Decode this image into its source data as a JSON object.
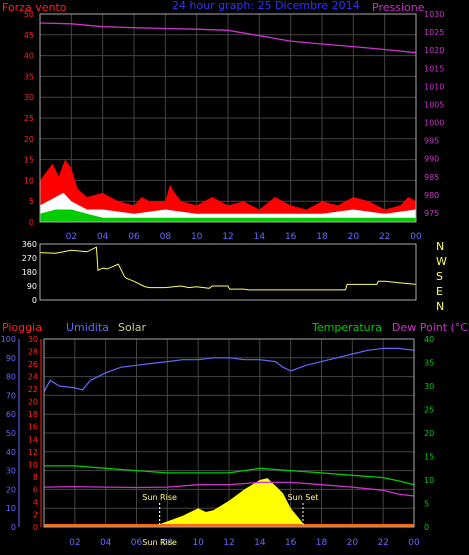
{
  "chart_data": [
    {
      "type": "area",
      "title": "24 hour graph",
      "y_left_label": "Forza vento",
      "y_right_label": "Pressione",
      "grid": true,
      "x_ticks": [
        "02",
        "04",
        "06",
        "08",
        "10",
        "12",
        "14",
        "16",
        "18",
        "20",
        "22",
        "00"
      ],
      "y_left_ticks": [
        "0",
        "5",
        "10",
        "15",
        "20",
        "25",
        "30",
        "35",
        "40",
        "45",
        "50"
      ],
      "y_right_ticks": [
        "975",
        "980",
        "985",
        "990",
        "995",
        "1000",
        "1005",
        "1010",
        "1015",
        "1020",
        "1025",
        "1030"
      ],
      "ylim_left": [
        0,
        50
      ],
      "ylim_right": [
        972.5,
        1030
      ],
      "colors": {
        "gust": "#ff0000",
        "wind": "#ffffff",
        "avg": "#00cc00",
        "pressure": "#cc33cc",
        "axis": "#ff2020",
        "axis_right": "#cc33cc",
        "title": "#3333ff",
        "frame": "#aaaaaa",
        "grid": "#444444"
      },
      "series": [
        {
          "role": "pressure",
          "x": [
            0,
            2,
            4,
            6,
            8,
            10,
            12,
            14,
            16,
            18,
            20,
            22,
            24
          ],
          "values": [
            1027.5,
            1027.3,
            1026.5,
            1026.2,
            1026.0,
            1025.8,
            1025.5,
            1024.0,
            1022.5,
            1021.7,
            1021.0,
            1020.2,
            1019.3
          ]
        },
        {
          "role": "gust",
          "x": [
            0,
            0.8,
            1.2,
            1.6,
            2.0,
            2.4,
            3.0,
            4.0,
            5.0,
            6.0,
            6.5,
            7.0,
            8.0,
            8.3,
            8.6,
            9.0,
            10.0,
            11.0,
            12.0,
            13.0,
            14.0,
            15.0,
            16.0,
            17.0,
            18.0,
            19.0,
            20.0,
            21.0,
            22.0,
            23.0,
            23.5,
            24.0
          ],
          "values": [
            10,
            14,
            11,
            15,
            13,
            8,
            6,
            7,
            5,
            4,
            6,
            5,
            5,
            9,
            7,
            5,
            4,
            6,
            4,
            5,
            3,
            6,
            4,
            3,
            5,
            4,
            6,
            5,
            3,
            4,
            6,
            5
          ]
        },
        {
          "role": "wind",
          "x": [
            0,
            1,
            1.5,
            2,
            3,
            4,
            6,
            8,
            10,
            12,
            14,
            16,
            18,
            20,
            22,
            24
          ],
          "values": [
            4,
            6,
            7,
            5,
            3,
            3,
            2,
            3,
            2,
            2,
            2,
            2,
            2,
            3,
            2,
            3
          ]
        },
        {
          "role": "avg",
          "x": [
            0,
            1,
            2,
            3,
            4,
            6,
            8,
            10,
            12,
            14,
            16,
            18,
            20,
            22,
            24
          ],
          "values": [
            2,
            3,
            3,
            2,
            1,
            1,
            1,
            1,
            1,
            1,
            1,
            1,
            1,
            1,
            1
          ]
        }
      ]
    },
    {
      "type": "line",
      "compass": [
        "N",
        "W",
        "S",
        "E",
        "N"
      ],
      "y_ticks": [
        "360",
        "270",
        "180",
        "90",
        "0"
      ],
      "ylim": [
        0,
        360
      ],
      "color": "#ffff66",
      "series": [
        {
          "role": "direction",
          "x": [
            0,
            1.0,
            2.0,
            3.0,
            3.6,
            3.7,
            4.0,
            4.3,
            5.0,
            5.4,
            5.5,
            6.0,
            6.6,
            6.7,
            7.0,
            8.0,
            9.0,
            9.5,
            10.0,
            10.8,
            11.0,
            12.0,
            12.1,
            13.0,
            13.3,
            14.0,
            16.0,
            18.0,
            19.5,
            19.6,
            20.0,
            21.0,
            21.5,
            21.6,
            22.0,
            23.0,
            24.0
          ],
          "values": [
            305,
            300,
            320,
            310,
            340,
            190,
            205,
            200,
            230,
            150,
            140,
            120,
            90,
            85,
            80,
            80,
            90,
            80,
            85,
            75,
            90,
            90,
            70,
            70,
            65,
            65,
            65,
            65,
            65,
            100,
            100,
            100,
            100,
            120,
            120,
            110,
            100
          ]
        }
      ]
    },
    {
      "type": "line",
      "legend": [
        "Pioggia",
        "Umidita",
        "Solar",
        "Temperatura",
        "Dew Point (°C)"
      ],
      "grid": true,
      "x_ticks": [
        "02",
        "04",
        "06",
        "08",
        "10",
        "12",
        "14",
        "16",
        "18",
        "20",
        "22",
        "00"
      ],
      "rain_ticks": [
        "0",
        "2",
        "4",
        "6",
        "8",
        "10",
        "12",
        "14",
        "16",
        "18",
        "20",
        "22",
        "24",
        "26",
        "28",
        "30"
      ],
      "humidity_ticks": [
        "0",
        "10",
        "20",
        "30",
        "40",
        "50",
        "60",
        "70",
        "80",
        "90",
        "100"
      ],
      "temp_ticks": [
        "0",
        "5",
        "10",
        "15",
        "20",
        "25",
        "30",
        "35",
        "40"
      ],
      "ylim_humidity": [
        0,
        100
      ],
      "ylim_temp": [
        0,
        40
      ],
      "annotations": [
        {
          "text": "Sun Rise",
          "x": 7.5
        },
        {
          "text": "Sun Set",
          "x": 16.8
        },
        {
          "text": "Sun Rise",
          "x": 7.5
        }
      ],
      "colors": {
        "rain": "#ff2020",
        "humidity": "#6666ff",
        "solar": "#ffff00",
        "temperature": "#00cc00",
        "dew": "#cc33cc",
        "solar_label": "#cccc99",
        "dew_axis": "#cc33cc",
        "frame": "#aaaaaa",
        "grid": "#444444",
        "annot": "#ffff66"
      },
      "series": [
        {
          "role": "humidity",
          "x": [
            0,
            0.4,
            1.0,
            2.0,
            2.5,
            3.0,
            4.0,
            5.0,
            6.0,
            7.0,
            8.0,
            9.0,
            10.0,
            11.0,
            12.0,
            13.0,
            14.0,
            15.0,
            15.5,
            16.0,
            17.0,
            18.0,
            19.0,
            20.0,
            21.0,
            22.0,
            23.0,
            24.0
          ],
          "values": [
            72,
            78,
            75,
            74,
            73,
            78,
            82,
            85,
            86,
            87,
            88,
            89,
            89,
            90,
            90,
            89,
            89,
            88,
            85,
            83,
            86,
            88,
            90,
            92,
            94,
            95,
            95,
            94
          ]
        },
        {
          "role": "temperature",
          "x": [
            0,
            2,
            4,
            6,
            8,
            10,
            12,
            14,
            16,
            18,
            20,
            22,
            23,
            24
          ],
          "values": [
            13.0,
            13.0,
            12.5,
            12.0,
            11.5,
            11.5,
            11.5,
            12.5,
            12.0,
            11.5,
            11.0,
            10.5,
            9.8,
            9.0
          ]
        },
        {
          "role": "dew",
          "x": [
            0,
            2,
            4,
            6,
            8,
            10,
            12,
            14,
            16,
            18,
            20,
            22,
            23,
            24
          ],
          "values": [
            8.5,
            8.6,
            8.5,
            8.4,
            8.5,
            9.0,
            9.0,
            9.5,
            9.5,
            9.0,
            8.5,
            7.8,
            7.0,
            6.6
          ]
        },
        {
          "role": "solar",
          "x": [
            0,
            7.0,
            8.0,
            9.0,
            10.0,
            10.5,
            11.0,
            12.0,
            13.0,
            14.0,
            14.5,
            15.0,
            15.5,
            16.0,
            17.0,
            24.0
          ],
          "values": [
            0,
            0,
            3,
            6,
            10,
            8,
            9,
            14,
            20,
            25,
            26,
            22,
            18,
            10,
            0,
            0
          ]
        }
      ]
    }
  ],
  "header": {
    "wind_label": "Forza vento",
    "title": "24 hour graph:  25 Dicembre 2014",
    "pressure_label": "Pressione"
  },
  "legend_bottom": {
    "rain": "Pioggia",
    "humidity": "Umidita",
    "solar": "Solar",
    "temperature": "Temperatura",
    "dew": "Dew Point (°C)"
  }
}
